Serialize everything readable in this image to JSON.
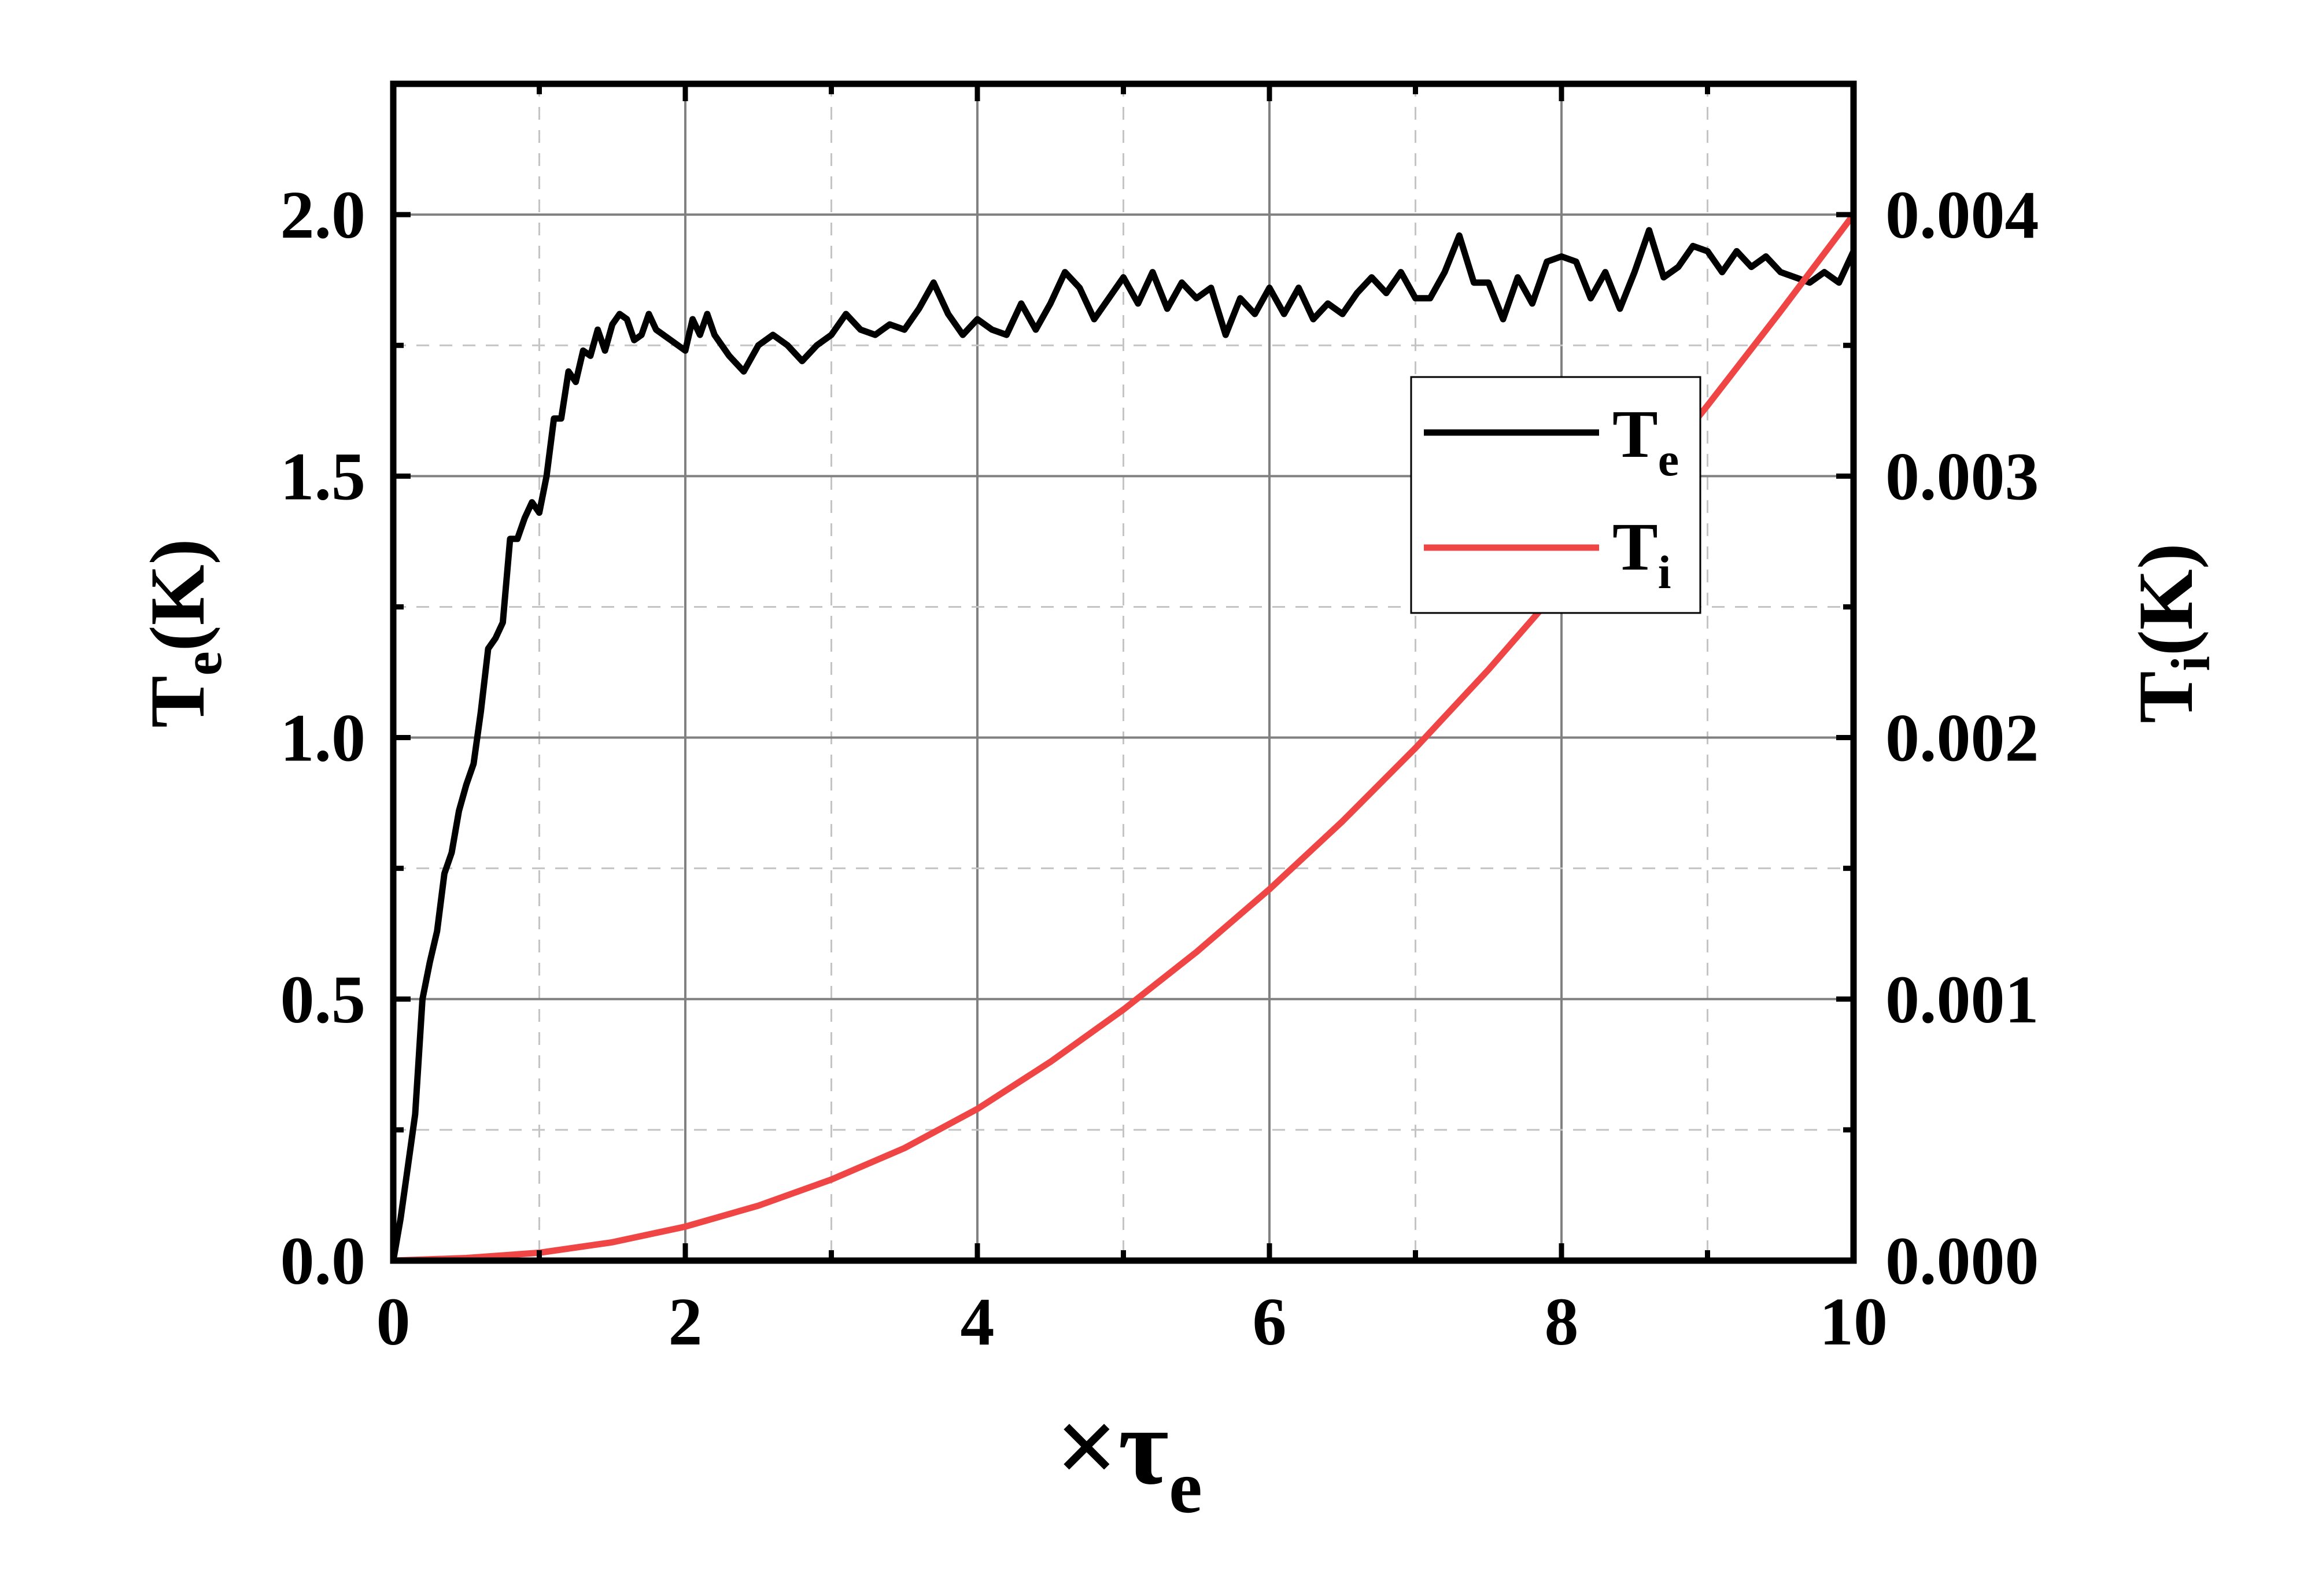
{
  "chart_data": {
    "type": "line",
    "xlabel": {
      "prefix": "×τ",
      "sub": "e"
    },
    "ylabel_left": {
      "main": "T",
      "sub": "e",
      "suffix": "(K)"
    },
    "ylabel_right": {
      "main": "T",
      "sub": "i",
      "suffix": "(K)"
    },
    "xlim": [
      0,
      10
    ],
    "ylim_left": [
      0,
      2.25
    ],
    "ylim_right": [
      0,
      0.0045
    ],
    "x_ticks": [
      "0",
      "2",
      "4",
      "6",
      "8",
      "10"
    ],
    "y_left_ticks": [
      "0.0",
      "0.5",
      "1.0",
      "1.5",
      "2.0"
    ],
    "y_right_ticks": [
      "0.000",
      "0.001",
      "0.002",
      "0.003",
      "0.004"
    ],
    "grid": true,
    "legend_position": "upper-right",
    "series": [
      {
        "name": "T",
        "sub": "e",
        "axis": "left",
        "color": "#000000",
        "x": [
          0.0,
          0.05,
          0.1,
          0.15,
          0.2,
          0.25,
          0.3,
          0.35,
          0.4,
          0.45,
          0.5,
          0.55,
          0.6,
          0.65,
          0.7,
          0.75,
          0.8,
          0.85,
          0.9,
          0.95,
          1.0,
          1.05,
          1.1,
          1.15,
          1.2,
          1.25,
          1.3,
          1.35,
          1.4,
          1.45,
          1.5,
          1.55,
          1.6,
          1.65,
          1.7,
          1.75,
          1.8,
          1.9,
          2.0,
          2.05,
          2.1,
          2.15,
          2.2,
          2.3,
          2.4,
          2.5,
          2.6,
          2.7,
          2.8,
          2.9,
          3.0,
          3.1,
          3.2,
          3.3,
          3.4,
          3.5,
          3.6,
          3.7,
          3.8,
          3.9,
          4.0,
          4.1,
          4.2,
          4.3,
          4.4,
          4.5,
          4.6,
          4.7,
          4.8,
          4.9,
          5.0,
          5.1,
          5.2,
          5.3,
          5.4,
          5.5,
          5.6,
          5.7,
          5.8,
          5.9,
          6.0,
          6.1,
          6.2,
          6.3,
          6.4,
          6.5,
          6.6,
          6.7,
          6.8,
          6.9,
          7.0,
          7.1,
          7.2,
          7.3,
          7.4,
          7.5,
          7.6,
          7.7,
          7.8,
          7.9,
          8.0,
          8.1,
          8.2,
          8.3,
          8.4,
          8.5,
          8.6,
          8.7,
          8.8,
          8.9,
          9.0,
          9.1,
          9.2,
          9.3,
          9.4,
          9.5,
          9.6,
          9.7,
          9.8,
          9.9,
          10.0
        ],
        "y": [
          0.0,
          0.08,
          0.18,
          0.28,
          0.5,
          0.57,
          0.63,
          0.74,
          0.78,
          0.86,
          0.91,
          0.95,
          1.05,
          1.17,
          1.19,
          1.22,
          1.38,
          1.38,
          1.42,
          1.45,
          1.43,
          1.5,
          1.61,
          1.61,
          1.7,
          1.68,
          1.74,
          1.73,
          1.78,
          1.74,
          1.79,
          1.81,
          1.8,
          1.76,
          1.77,
          1.81,
          1.78,
          1.76,
          1.74,
          1.8,
          1.77,
          1.81,
          1.77,
          1.73,
          1.7,
          1.75,
          1.77,
          1.75,
          1.72,
          1.75,
          1.77,
          1.81,
          1.78,
          1.77,
          1.79,
          1.78,
          1.82,
          1.87,
          1.81,
          1.77,
          1.8,
          1.78,
          1.77,
          1.83,
          1.78,
          1.83,
          1.89,
          1.86,
          1.8,
          1.84,
          1.88,
          1.83,
          1.89,
          1.82,
          1.87,
          1.84,
          1.86,
          1.77,
          1.84,
          1.81,
          1.86,
          1.81,
          1.86,
          1.8,
          1.83,
          1.81,
          1.85,
          1.88,
          1.85,
          1.89,
          1.84,
          1.84,
          1.89,
          1.96,
          1.87,
          1.87,
          1.8,
          1.88,
          1.83,
          1.91,
          1.92,
          1.91,
          1.84,
          1.89,
          1.82,
          1.89,
          1.97,
          1.88,
          1.9,
          1.94,
          1.93,
          1.89,
          1.93,
          1.9,
          1.92,
          1.89,
          1.88,
          1.87,
          1.89,
          1.87,
          1.93
        ]
      },
      {
        "name": "T",
        "sub": "i",
        "axis": "right",
        "color": "#f04545",
        "x": [
          0,
          0.5,
          1,
          1.5,
          2,
          2.5,
          3,
          3.5,
          4,
          4.5,
          5,
          5.5,
          6,
          6.5,
          7,
          7.5,
          8,
          8.5,
          9,
          9.5,
          10
        ],
        "y": [
          0.0,
          1e-05,
          3e-05,
          7e-05,
          0.00013,
          0.00021,
          0.00031,
          0.00043,
          0.00058,
          0.00076,
          0.00096,
          0.00118,
          0.00142,
          0.00168,
          0.00196,
          0.00226,
          0.00258,
          0.00292,
          0.00327,
          0.00363,
          0.004
        ]
      }
    ]
  }
}
